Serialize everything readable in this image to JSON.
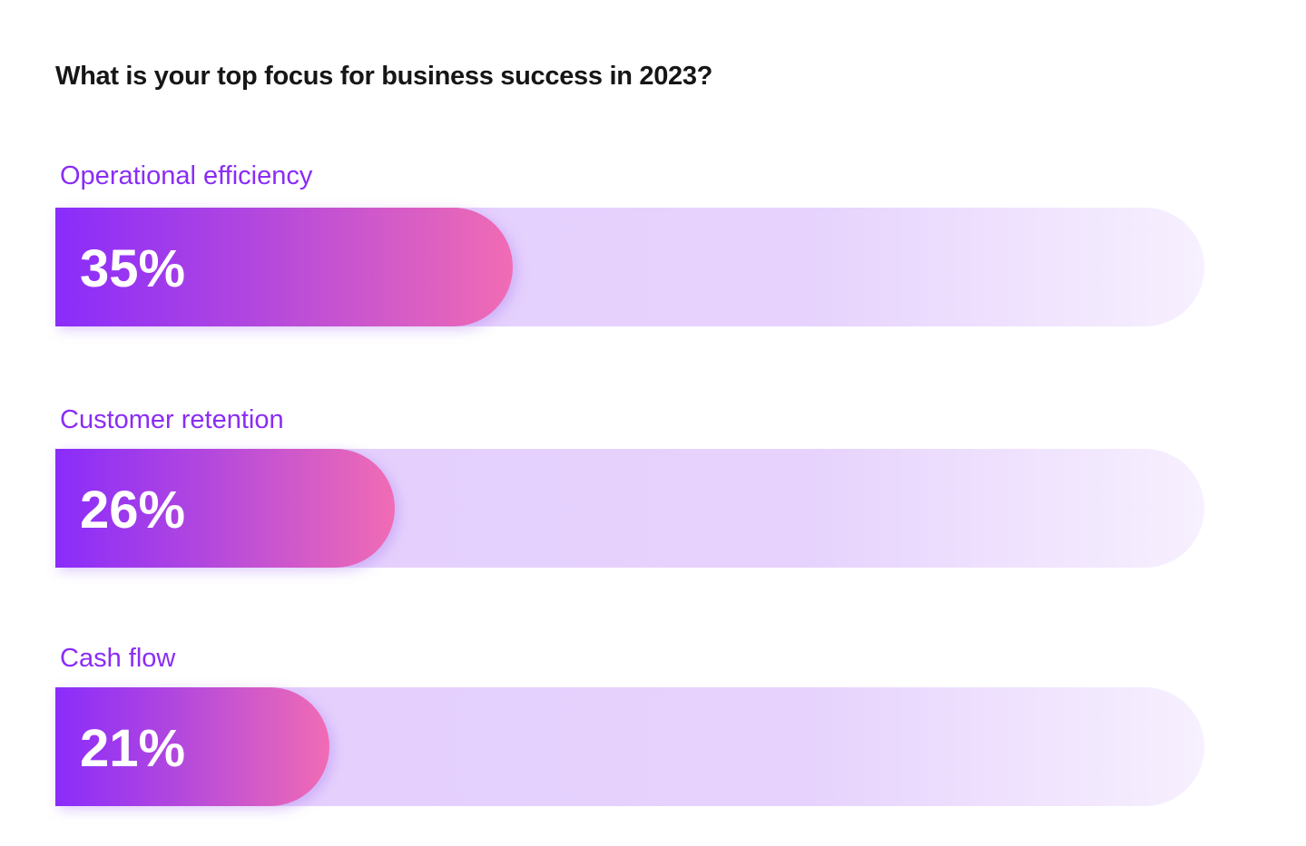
{
  "chart_data": {
    "type": "bar",
    "orientation": "horizontal",
    "title": "What is your top focus for business success in 2023?",
    "categories": [
      "Operational efficiency",
      "Customer retention",
      "Cash flow"
    ],
    "values": [
      35,
      26,
      21
    ],
    "labels": [
      "35%",
      "26%",
      "21%"
    ],
    "unit": "%",
    "grid": false,
    "colors": {
      "fill_start": "#8a2cfb",
      "fill_end": "#f16cb4",
      "track": "#e4cffd",
      "category_text": "#8a2cf5"
    }
  }
}
